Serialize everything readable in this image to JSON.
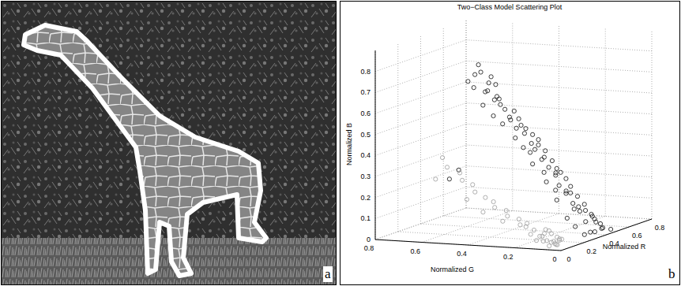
{
  "panel_labels": [
    "a",
    "b"
  ],
  "chart_data": {
    "type": "scatter3d",
    "title": "Two−Class Model Scattering Plot",
    "x_label": "Normalized R",
    "y_label": "Normalized G",
    "z_label": "Normalized B",
    "xlim": [
      0,
      0.8
    ],
    "xticks": [
      0,
      0.2,
      0.4,
      0.6,
      0.8
    ],
    "ylim": [
      0,
      0.8
    ],
    "yticks": [
      0,
      0.2,
      0.4,
      0.6,
      0.8
    ],
    "zlim": [
      0,
      0.9
    ],
    "zticks": [
      0,
      0.1,
      0.2,
      0.3,
      0.4,
      0.5,
      0.6,
      0.7,
      0.8
    ],
    "grid": true,
    "series": [
      {
        "color": "#262626",
        "marker": "circle",
        "x": [
          0.05,
          0.03,
          0.06,
          0.08,
          0.04,
          0.08,
          0.05,
          0.1,
          0.09,
          0.07,
          0.11,
          0.11,
          0.08,
          0.13,
          0.09,
          0.12,
          0.14,
          0.1,
          0.14,
          0.16,
          0.12,
          0.17,
          0.16,
          0.18,
          0.14,
          0.17,
          0.2,
          0.15,
          0.19,
          0.19,
          0.21,
          0.18,
          0.2,
          0.23,
          0.18,
          0.22,
          0.22,
          0.25,
          0.2,
          0.24,
          0.27,
          0.22,
          0.26,
          0.26,
          0.29,
          0.24,
          0.27,
          0.31,
          0.25,
          0.3,
          0.29,
          0.33,
          0.27,
          0.35,
          0.31,
          0.35,
          0.28,
          0.38,
          0.33,
          0.37,
          0.3,
          0.4,
          0.34,
          0.39,
          0.31,
          0.42,
          0.45,
          0.36,
          0.41,
          0.33,
          0.44,
          0.48,
          0.3,
          0.02,
          0.04,
          0.1,
          0.5
        ],
        "y": [
          0.38,
          0.36,
          0.4,
          0.34,
          0.42,
          0.35,
          0.4,
          0.33,
          0.36,
          0.31,
          0.38,
          0.32,
          0.3,
          0.35,
          0.38,
          0.3,
          0.27,
          0.34,
          0.29,
          0.26,
          0.31,
          0.3,
          0.25,
          0.28,
          0.22,
          0.24,
          0.22,
          0.27,
          0.19,
          0.22,
          0.2,
          0.25,
          0.21,
          0.18,
          0.16,
          0.24,
          0.19,
          0.16,
          0.22,
          0.17,
          0.15,
          0.13,
          0.2,
          0.15,
          0.12,
          0.18,
          0.14,
          0.11,
          0.1,
          0.17,
          0.12,
          0.09,
          0.15,
          0.13,
          0.1,
          0.07,
          0.08,
          0.11,
          0.08,
          0.05,
          0.12,
          0.09,
          0.06,
          0.04,
          0.09,
          0.07,
          0.05,
          0.03,
          0.02,
          0.06,
          0.04,
          0.02,
          0.02,
          0.45,
          0.5,
          0.05,
          0.1
        ],
        "z": [
          0.85,
          0.82,
          0.8,
          0.79,
          0.77,
          0.76,
          0.74,
          0.75,
          0.72,
          0.7,
          0.71,
          0.68,
          0.66,
          0.67,
          0.65,
          0.63,
          0.62,
          0.6,
          0.59,
          0.58,
          0.56,
          0.57,
          0.55,
          0.53,
          0.54,
          0.51,
          0.5,
          0.49,
          0.48,
          0.46,
          0.45,
          0.44,
          0.43,
          0.42,
          0.4,
          0.41,
          0.38,
          0.37,
          0.36,
          0.34,
          0.33,
          0.32,
          0.31,
          0.3,
          0.28,
          0.27,
          0.25,
          0.24,
          0.23,
          0.22,
          0.21,
          0.19,
          0.18,
          0.2,
          0.16,
          0.15,
          0.14,
          0.13,
          0.12,
          0.1,
          0.09,
          0.11,
          0.07,
          0.06,
          0.05,
          0.08,
          0.04,
          0.02,
          0.03,
          0.01,
          0.02,
          0.01,
          0.03,
          0.35,
          0.3,
          0.35,
          0.05
        ]
      },
      {
        "color": "#a6a6a6",
        "marker": "circle",
        "x": [
          0.05,
          0.08,
          0.06,
          0.1,
          0.04,
          0.07,
          0.12,
          0.09,
          0.03,
          0.11,
          0.06,
          0.08,
          0.13,
          0.05,
          0.1,
          0.07,
          0.04,
          0.09,
          0.06,
          0.12,
          0.15,
          0.14,
          0.05,
          0.08,
          0.04,
          0.07,
          0.03,
          0.06,
          0.05,
          0.02,
          0.04,
          0.03,
          0.05,
          0.02,
          0.04,
          0.03,
          0.06,
          0.09,
          0.02,
          0.05
        ],
        "y": [
          0.05,
          0.06,
          0.09,
          0.08,
          0.07,
          0.04,
          0.1,
          0.12,
          0.03,
          0.05,
          0.11,
          0.08,
          0.07,
          0.13,
          0.14,
          0.1,
          0.15,
          0.16,
          0.18,
          0.13,
          0.09,
          0.12,
          0.2,
          0.22,
          0.25,
          0.27,
          0.3,
          0.32,
          0.35,
          0.38,
          0.4,
          0.44,
          0.46,
          0.5,
          0.53,
          0.42,
          0.28,
          0.19,
          0.55,
          0.36
        ],
        "z": [
          0.02,
          0.01,
          0.03,
          0.02,
          0.01,
          0.04,
          0.01,
          0.02,
          0.02,
          0.03,
          0.05,
          0.06,
          0.02,
          0.03,
          0.04,
          0.08,
          0.06,
          0.07,
          0.09,
          0.05,
          0.03,
          0.06,
          0.1,
          0.12,
          0.14,
          0.16,
          0.18,
          0.2,
          0.22,
          0.25,
          0.28,
          0.3,
          0.33,
          0.36,
          0.4,
          0.21,
          0.11,
          0.1,
          0.3,
          0.15
        ]
      }
    ]
  }
}
